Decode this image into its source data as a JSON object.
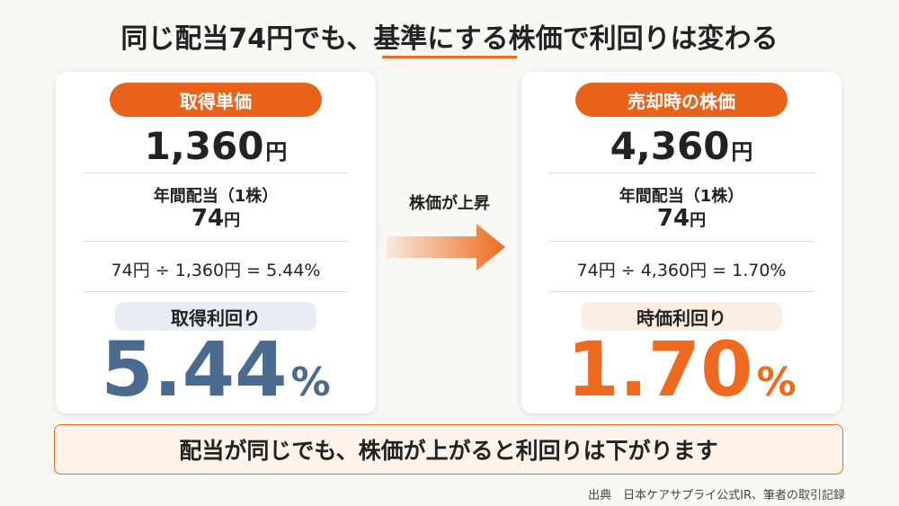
{
  "title": "同じ配当74円でも、基準にする株価で利回りは変わる",
  "cards": [
    {
      "label": "取得単価",
      "price": "1,360",
      "price_unit": "円",
      "dividend_label": "年間配当（1株）",
      "dividend": "74",
      "dividend_unit": "円",
      "formula": "74円 ÷ 1,360円 = 5.44%",
      "yield_label": "取得利回り",
      "yield": "5.44",
      "yield_unit": "%"
    },
    {
      "label": "売却時の株価",
      "price": "4,360",
      "price_unit": "円",
      "dividend_label": "年間配当（1株）",
      "dividend": "74",
      "dividend_unit": "円",
      "formula": "74円 ÷ 4,360円 = 1.70%",
      "yield_label": "時価利回り",
      "yield": "1.70",
      "yield_unit": "%"
    }
  ],
  "arrow_label": "株価が上昇",
  "conclusion": "配当が同じでも、株価が上がると利回りは下がります",
  "source": "出典　日本ケアサプライ公式IR、筆者の取引記録"
}
